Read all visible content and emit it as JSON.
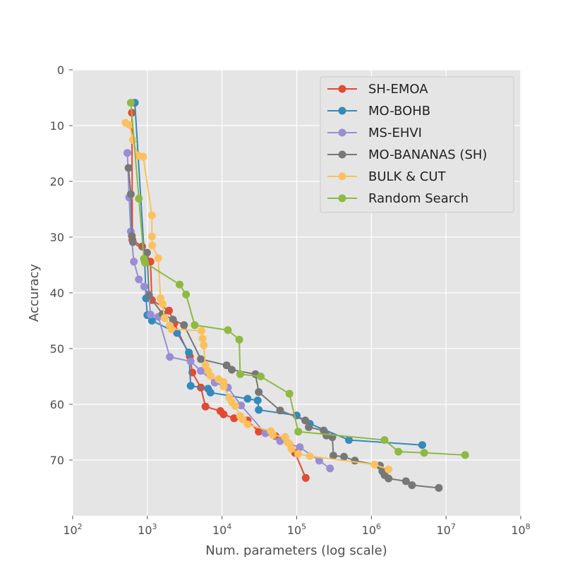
{
  "chart_data": {
    "type": "line",
    "title": "",
    "xlabel": "Num. parameters (log scale)",
    "ylabel": "Accuracy",
    "xscale": "log",
    "xlim": [
      100,
      100000000
    ],
    "ylim": [
      0,
      80
    ],
    "y_inverted": true,
    "x_ticks": [
      {
        "base": "10",
        "exp": "2",
        "value": 100
      },
      {
        "base": "10",
        "exp": "3",
        "value": 1000
      },
      {
        "base": "10",
        "exp": "4",
        "value": 10000
      },
      {
        "base": "10",
        "exp": "5",
        "value": 100000
      },
      {
        "base": "10",
        "exp": "6",
        "value": 1000000
      },
      {
        "base": "10",
        "exp": "7",
        "value": 10000000
      },
      {
        "base": "10",
        "exp": "8",
        "value": 100000000
      }
    ],
    "y_ticks": [
      "0",
      "10",
      "20",
      "30",
      "40",
      "50",
      "60",
      "70"
    ],
    "grid": true,
    "legend": "top-right",
    "series": [
      {
        "name": "SH-EMOA",
        "color": "#e24a33",
        "points": [
          [
            620,
            7.7
          ],
          [
            630,
            30.5
          ],
          [
            850,
            31.7
          ],
          [
            1100,
            34.4
          ],
          [
            1150,
            41.3
          ],
          [
            1950,
            43.2
          ],
          [
            2300,
            45.5
          ],
          [
            3700,
            51.4
          ],
          [
            4000,
            54.3
          ],
          [
            5200,
            57
          ],
          [
            6000,
            60.4
          ],
          [
            9500,
            61.2
          ],
          [
            10500,
            61.8
          ],
          [
            14500,
            62.5
          ],
          [
            22000,
            62.9
          ],
          [
            31000,
            64.9
          ],
          [
            52000,
            65.7
          ],
          [
            70000,
            65.9
          ],
          [
            95000,
            68.7
          ],
          [
            132000,
            73.2
          ]
        ]
      },
      {
        "name": "MO-BOHB",
        "color": "#348abd",
        "points": [
          [
            680,
            5.9
          ],
          [
            920,
            34.2
          ],
          [
            960,
            41
          ],
          [
            1000,
            44
          ],
          [
            1150,
            45
          ],
          [
            2500,
            47.2
          ],
          [
            3600,
            50.7
          ],
          [
            3800,
            56.7
          ],
          [
            6500,
            57.2
          ],
          [
            7000,
            57.9
          ],
          [
            22000,
            59
          ],
          [
            30000,
            59.3
          ],
          [
            31000,
            61
          ],
          [
            100000,
            62
          ],
          [
            150000,
            63.5
          ],
          [
            500000,
            66.4
          ],
          [
            4800000,
            67.3
          ]
        ]
      },
      {
        "name": "MS-EHVI",
        "color": "#988ed5",
        "points": [
          [
            540,
            14.9
          ],
          [
            570,
            22.9
          ],
          [
            600,
            29
          ],
          [
            660,
            34.4
          ],
          [
            770,
            37.6
          ],
          [
            910,
            38.9
          ],
          [
            1050,
            40.3
          ],
          [
            1100,
            43.9
          ],
          [
            1400,
            44.3
          ],
          [
            2000,
            51.5
          ],
          [
            3800,
            52.3
          ],
          [
            5200,
            54
          ],
          [
            8000,
            56.1
          ],
          [
            12000,
            57
          ],
          [
            18000,
            60.2
          ],
          [
            38000,
            65.2
          ],
          [
            60000,
            66.6
          ],
          [
            110000,
            67.7
          ],
          [
            200000,
            70.1
          ],
          [
            280000,
            71.5
          ]
        ]
      },
      {
        "name": "MO-BANANAS (SH)",
        "color": "#777777",
        "points": [
          [
            560,
            17.6
          ],
          [
            600,
            22.3
          ],
          [
            620,
            29.8
          ],
          [
            640,
            30.9
          ],
          [
            990,
            32.8
          ],
          [
            1050,
            40.5
          ],
          [
            1600,
            43.8
          ],
          [
            2200,
            44.8
          ],
          [
            3100,
            45.8
          ],
          [
            5200,
            51.9
          ],
          [
            11500,
            53
          ],
          [
            13500,
            53.8
          ],
          [
            28000,
            54.6
          ],
          [
            31000,
            57.8
          ],
          [
            60000,
            61.1
          ],
          [
            130000,
            62.9
          ],
          [
            145000,
            64.1
          ],
          [
            230000,
            64.7
          ],
          [
            250000,
            65.6
          ],
          [
            300000,
            65.9
          ],
          [
            310000,
            69.2
          ],
          [
            430000,
            69.4
          ],
          [
            600000,
            70.1
          ],
          [
            1300000,
            71
          ],
          [
            1400000,
            72
          ],
          [
            1500000,
            72.7
          ],
          [
            1700000,
            73.3
          ],
          [
            2900000,
            73.8
          ],
          [
            3500000,
            74.5
          ],
          [
            8000000,
            75
          ]
        ]
      },
      {
        "name": "BULK & CUT",
        "color": "#fbc15e",
        "points": [
          [
            510,
            9.5
          ],
          [
            580,
            9.9
          ],
          [
            640,
            12.6
          ],
          [
            760,
            15.4
          ],
          [
            880,
            15.6
          ],
          [
            1150,
            26.1
          ],
          [
            1150,
            29.9
          ],
          [
            1160,
            31.5
          ],
          [
            1400,
            33.8
          ],
          [
            1500,
            41
          ],
          [
            1600,
            42
          ],
          [
            1700,
            44.5
          ],
          [
            2000,
            45.9
          ],
          [
            2100,
            46.5
          ],
          [
            5300,
            46.8
          ],
          [
            5500,
            48.2
          ],
          [
            5700,
            49.4
          ],
          [
            6000,
            53
          ],
          [
            6500,
            54
          ],
          [
            7000,
            54.9
          ],
          [
            9000,
            55.5
          ],
          [
            10500,
            56
          ],
          [
            10500,
            56.8
          ],
          [
            12500,
            58.8
          ],
          [
            13500,
            59.6
          ],
          [
            15000,
            60.3
          ],
          [
            17500,
            62.1
          ],
          [
            19000,
            62.7
          ],
          [
            22000,
            63.6
          ],
          [
            45000,
            64.8
          ],
          [
            48000,
            65.5
          ],
          [
            70000,
            65.9
          ],
          [
            75000,
            66.8
          ],
          [
            80000,
            67.1
          ],
          [
            85000,
            68
          ],
          [
            105000,
            68.9
          ],
          [
            150000,
            69.3
          ],
          [
            1100000,
            70.8
          ],
          [
            1700000,
            71.7
          ]
        ]
      },
      {
        "name": "Random Search",
        "color": "#8eba42",
        "points": [
          [
            600,
            5.9
          ],
          [
            770,
            23.1
          ],
          [
            900,
            33.9
          ],
          [
            930,
            34.6
          ],
          [
            2700,
            38.5
          ],
          [
            3300,
            40.3
          ],
          [
            4300,
            45.8
          ],
          [
            12000,
            46.7
          ],
          [
            17000,
            48.4
          ],
          [
            17500,
            54.6
          ],
          [
            33000,
            55
          ],
          [
            80000,
            58.1
          ],
          [
            105000,
            64.9
          ],
          [
            1500000,
            66.4
          ],
          [
            2300000,
            68.5
          ],
          [
            5100000,
            68.7
          ],
          [
            18000000,
            69.1
          ]
        ]
      }
    ]
  }
}
